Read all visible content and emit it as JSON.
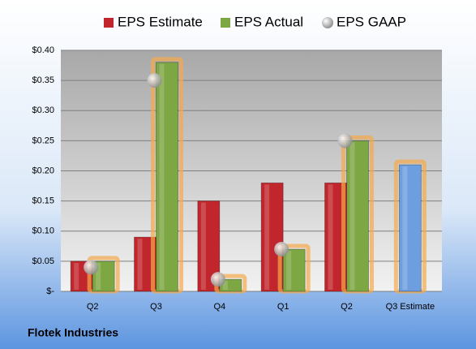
{
  "chart_data": {
    "type": "bar",
    "categories": [
      "Q2",
      "Q3",
      "Q4",
      "Q1",
      "Q2",
      "Q3 Estimate"
    ],
    "series": [
      {
        "name": "EPS Estimate",
        "color": "#c0262b",
        "colors": [
          "#c0262b",
          "#c0262b",
          "#c0262b",
          "#c0262b",
          "#c0262b",
          "#6d9ee0"
        ],
        "values": [
          0.05,
          0.09,
          0.15,
          0.18,
          0.18,
          0.21
        ]
      },
      {
        "name": "EPS Actual",
        "color": "#7da743",
        "values": [
          0.05,
          0.38,
          0.02,
          0.07,
          0.25,
          null
        ]
      },
      {
        "name": "EPS GAAP",
        "color": "#b8b8b8",
        "values": [
          0.04,
          0.35,
          0.02,
          0.07,
          0.25,
          null
        ]
      }
    ],
    "ylim": [
      0,
      0.4
    ],
    "yticks": [
      {
        "value": 0,
        "label": "$-"
      },
      {
        "value": 0.05,
        "label": "$0.05"
      },
      {
        "value": 0.1,
        "label": "$0.10"
      },
      {
        "value": 0.15,
        "label": "$0.15"
      },
      {
        "value": 0.2,
        "label": "$0.20"
      },
      {
        "value": 0.25,
        "label": "$0.25"
      },
      {
        "value": 0.3,
        "label": "$0.30"
      },
      {
        "value": 0.35,
        "label": "$0.35"
      },
      {
        "value": 0.4,
        "label": "$0.40"
      }
    ],
    "grid": true,
    "footer": "Flotek Industries"
  }
}
